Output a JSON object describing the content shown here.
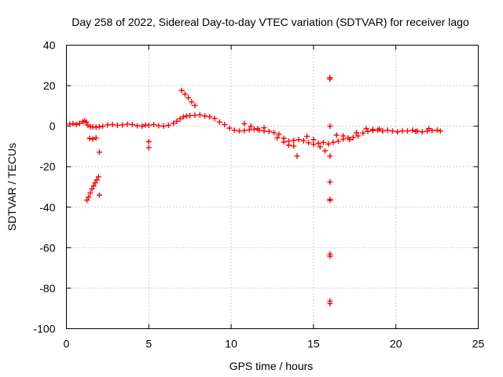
{
  "chart_data": {
    "type": "scatter",
    "title": "Day 258 of 2022, Sidereal Day-to-day VTEC variation (SDTVAR) for receiver lago",
    "xlabel": "GPS time / hours",
    "ylabel": "SDTVAR / TECUs",
    "xlim": [
      0,
      25
    ],
    "ylim": [
      -100,
      40
    ],
    "xticks": [
      0,
      5,
      10,
      15,
      20,
      25
    ],
    "yticks": [
      -100,
      -80,
      -60,
      -40,
      -20,
      0,
      20,
      40
    ],
    "grid": true,
    "marker": "plus",
    "color": "#ff0000",
    "series": [
      {
        "name": "SDTVAR",
        "points": [
          [
            0.2,
            1.0
          ],
          [
            0.4,
            1.2
          ],
          [
            0.6,
            0.8
          ],
          [
            0.8,
            1.4
          ],
          [
            1.0,
            2.2
          ],
          [
            1.1,
            2.6
          ],
          [
            1.2,
            2.0
          ],
          [
            1.3,
            0.5
          ],
          [
            1.45,
            -0.2
          ],
          [
            1.6,
            -0.4
          ],
          [
            1.8,
            -0.5
          ],
          [
            2.0,
            -0.3
          ],
          [
            2.2,
            0.0
          ],
          [
            2.5,
            0.6
          ],
          [
            2.8,
            0.8
          ],
          [
            3.1,
            0.4
          ],
          [
            3.4,
            0.6
          ],
          [
            3.7,
            1.0
          ],
          [
            4.0,
            0.8
          ],
          [
            4.3,
            0.2
          ],
          [
            4.6,
            0.0
          ],
          [
            4.8,
            0.6
          ],
          [
            5.0,
            0.4
          ],
          [
            5.3,
            0.8
          ],
          [
            5.6,
            0.2
          ],
          [
            5.9,
            0.0
          ],
          [
            6.2,
            0.4
          ],
          [
            6.5,
            1.4
          ],
          [
            6.7,
            2.4
          ],
          [
            6.9,
            3.6
          ],
          [
            7.1,
            4.6
          ],
          [
            7.3,
            5.0
          ],
          [
            7.5,
            5.2
          ],
          [
            7.8,
            5.4
          ],
          [
            8.1,
            5.6
          ],
          [
            8.4,
            5.0
          ],
          [
            8.7,
            4.6
          ],
          [
            9.0,
            3.8
          ],
          [
            9.3,
            2.0
          ],
          [
            9.6,
            0.8
          ],
          [
            9.9,
            -1.0
          ],
          [
            10.2,
            -2.0
          ],
          [
            10.5,
            -2.4
          ],
          [
            10.8,
            -2.2
          ],
          [
            11.1,
            -1.8
          ],
          [
            11.4,
            -1.6
          ],
          [
            11.7,
            -2.0
          ],
          [
            12.0,
            -2.4
          ],
          [
            12.3,
            -2.6
          ],
          [
            12.6,
            -3.2
          ],
          [
            12.9,
            -4.0
          ],
          [
            13.2,
            -6.0
          ],
          [
            13.5,
            -7.4
          ],
          [
            13.8,
            -7.0
          ],
          [
            14.1,
            -6.6
          ],
          [
            14.4,
            -7.2
          ],
          [
            14.7,
            -8.2
          ],
          [
            15.0,
            -9.0
          ],
          [
            15.3,
            -8.4
          ],
          [
            15.6,
            -8.0
          ],
          [
            15.9,
            -8.8
          ],
          [
            16.2,
            -8.0
          ],
          [
            16.5,
            -7.4
          ],
          [
            16.8,
            -6.4
          ],
          [
            17.1,
            -5.8
          ],
          [
            17.4,
            -5.6
          ],
          [
            17.7,
            -4.8
          ],
          [
            18.0,
            -3.4
          ],
          [
            18.3,
            -2.6
          ],
          [
            18.6,
            -2.2
          ],
          [
            18.9,
            -2.0
          ],
          [
            19.2,
            -2.4
          ],
          [
            19.5,
            -2.0
          ],
          [
            19.8,
            -2.4
          ],
          [
            20.1,
            -2.8
          ],
          [
            20.4,
            -2.4
          ],
          [
            20.7,
            -2.4
          ],
          [
            21.0,
            -2.0
          ],
          [
            21.3,
            -2.4
          ],
          [
            21.6,
            -2.8
          ],
          [
            21.9,
            -2.4
          ],
          [
            22.2,
            -2.2
          ],
          [
            22.5,
            -2.0
          ],
          [
            22.7,
            -2.4
          ],
          [
            1.25,
            -36.5
          ],
          [
            1.35,
            -35.0
          ],
          [
            1.45,
            -33.0
          ],
          [
            1.55,
            -31.0
          ],
          [
            1.65,
            -29.5
          ],
          [
            1.75,
            -28.0
          ],
          [
            1.85,
            -26.5
          ],
          [
            1.95,
            -25.0
          ],
          [
            1.4,
            -6.0
          ],
          [
            1.6,
            -6.4
          ],
          [
            1.8,
            -5.8
          ],
          [
            2.0,
            -12.8
          ],
          [
            2.0,
            -34.0
          ],
          [
            5.0,
            -7.6
          ],
          [
            5.0,
            -10.6
          ],
          [
            7.0,
            17.6
          ],
          [
            7.2,
            15.8
          ],
          [
            7.4,
            14.0
          ],
          [
            7.6,
            12.0
          ],
          [
            7.8,
            10.2
          ],
          [
            10.8,
            1.2
          ],
          [
            11.2,
            0.0
          ],
          [
            11.6,
            -1.2
          ],
          [
            12.0,
            -0.8
          ],
          [
            12.8,
            -5.8
          ],
          [
            13.2,
            -7.8
          ],
          [
            13.5,
            -9.4
          ],
          [
            13.8,
            -9.8
          ],
          [
            14.0,
            -14.8
          ],
          [
            14.6,
            -5.0
          ],
          [
            15.0,
            -6.6
          ],
          [
            15.4,
            -10.2
          ],
          [
            15.7,
            -12.2
          ],
          [
            16.0,
            -14.8
          ],
          [
            16.0,
            24.0
          ],
          [
            16.0,
            23.2
          ],
          [
            16.0,
            0.0
          ],
          [
            16.0,
            -27.6
          ],
          [
            16.0,
            -36.2
          ],
          [
            16.0,
            -36.6
          ],
          [
            16.0,
            -63.2
          ],
          [
            16.0,
            -64.2
          ],
          [
            16.0,
            -86.4
          ],
          [
            16.0,
            -87.6
          ],
          [
            16.4,
            -4.4
          ],
          [
            16.8,
            -4.8
          ],
          [
            17.2,
            -6.6
          ],
          [
            17.6,
            -3.2
          ],
          [
            18.2,
            -1.2
          ],
          [
            18.6,
            -1.6
          ],
          [
            19.0,
            -1.4
          ],
          [
            21.2,
            -2.6
          ],
          [
            22.0,
            -1.2
          ]
        ]
      }
    ]
  }
}
